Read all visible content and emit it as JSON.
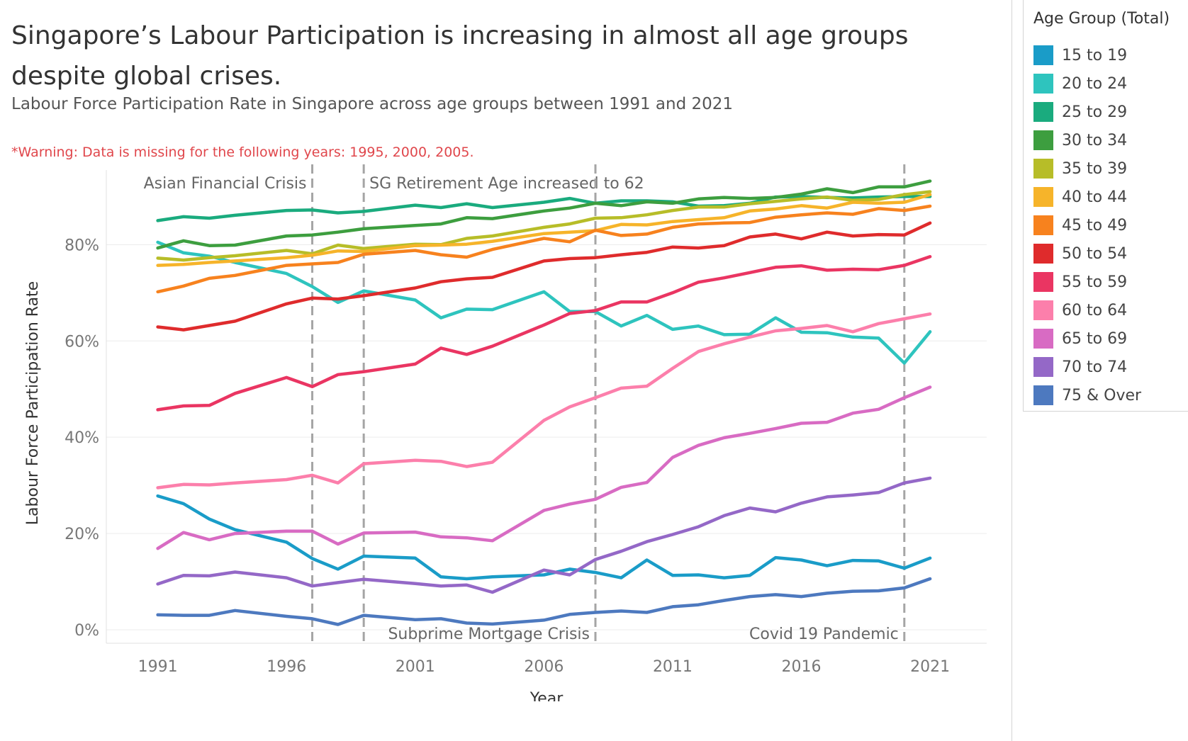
{
  "title": "Singapore’s Labour Participation is increasing in almost all age groups despite global crises.",
  "subtitle": "Labour Force Participation Rate in Singapore across age groups between 1991 and 2021",
  "warning": "*Warning: Data is missing for the following years: 1995, 2000, 2005.",
  "chart_data": {
    "type": "line",
    "xlabel": "Year",
    "ylabel": "Labour Force Participation Rate",
    "xlim": [
      1989,
      2023.2
    ],
    "ylim": [
      -2.5,
      95.5
    ],
    "x_ticks": [
      1991,
      1996,
      2001,
      2006,
      2011,
      2016,
      2021
    ],
    "y_ticks": [
      0,
      20,
      40,
      60,
      80
    ],
    "y_tick_labels": [
      "0%",
      "20%",
      "40%",
      "60%",
      "80%"
    ],
    "grid": "horizontal",
    "legend_title": "Age Group (Total)",
    "legend_position": "right",
    "annotations": [
      {
        "year": 1997,
        "label": "Asian Financial Crisis",
        "label_side": "left",
        "label_pos": "top"
      },
      {
        "year": 1999,
        "label": "SG Retirement Age increased to 62",
        "label_side": "right",
        "label_pos": "top"
      },
      {
        "year": 2008,
        "label": "Subprime Mortgage Crisis",
        "label_side": "left",
        "label_pos": "bottom"
      },
      {
        "year": 2020,
        "label": "Covid 19 Pandemic",
        "label_side": "left",
        "label_pos": "bottom"
      }
    ],
    "x": [
      1991,
      1992,
      1993,
      1994,
      1996,
      1997,
      1998,
      1999,
      2001,
      2002,
      2003,
      2004,
      2006,
      2007,
      2008,
      2009,
      2010,
      2011,
      2012,
      2013,
      2014,
      2015,
      2016,
      2017,
      2018,
      2019,
      2020,
      2021
    ],
    "series": [
      {
        "name": "15 to 19",
        "color": "#1a9cc8",
        "values": [
          27.8,
          26.2,
          23.0,
          20.8,
          18.2,
          14.8,
          12.6,
          15.3,
          14.9,
          11.0,
          10.6,
          11.0,
          11.4,
          12.6,
          11.9,
          10.8,
          14.5,
          11.3,
          11.4,
          10.8,
          11.3,
          15.0,
          14.5,
          13.3,
          14.4,
          14.3,
          12.8,
          14.9
        ]
      },
      {
        "name": "20 to 24",
        "color": "#2ec4be",
        "values": [
          80.5,
          78.3,
          77.6,
          76.3,
          74.0,
          71.3,
          68.0,
          70.4,
          68.5,
          64.8,
          66.6,
          66.5,
          70.2,
          66.1,
          66.1,
          63.1,
          65.3,
          62.4,
          63.1,
          61.3,
          61.4,
          64.8,
          61.8,
          61.7,
          60.8,
          60.6,
          55.4,
          61.9
        ]
      },
      {
        "name": "25 to 29",
        "color": "#1aab7e",
        "values": [
          85.0,
          85.8,
          85.5,
          86.1,
          87.1,
          87.2,
          86.6,
          86.9,
          88.2,
          87.7,
          88.5,
          87.7,
          88.8,
          89.6,
          88.6,
          89.1,
          89.1,
          88.9,
          88.0,
          88.1,
          88.6,
          89.9,
          90.0,
          89.8,
          89.7,
          89.9,
          90.0,
          90.0
        ]
      },
      {
        "name": "30 to 34",
        "color": "#3d9e3f",
        "values": [
          79.3,
          80.8,
          79.8,
          79.9,
          81.8,
          82.0,
          82.6,
          83.3,
          84.0,
          84.3,
          85.6,
          85.4,
          87.0,
          87.6,
          88.6,
          88.1,
          88.9,
          88.6,
          89.5,
          89.8,
          89.6,
          89.8,
          90.5,
          91.6,
          90.8,
          92.0,
          92.0,
          93.2
        ]
      },
      {
        "name": "35 to 39",
        "color": "#b7bd28",
        "values": [
          77.2,
          76.8,
          77.3,
          77.7,
          78.8,
          78.1,
          79.9,
          79.2,
          80.1,
          80.0,
          81.3,
          81.8,
          83.6,
          84.3,
          85.5,
          85.6,
          86.2,
          87.1,
          87.8,
          87.8,
          88.5,
          89.0,
          89.5,
          89.9,
          89.2,
          89.4,
          90.4,
          91.0
        ]
      },
      {
        "name": "40 to 44",
        "color": "#f6b42a",
        "values": [
          75.7,
          75.9,
          76.3,
          76.6,
          77.3,
          77.8,
          78.7,
          78.6,
          79.8,
          79.9,
          80.1,
          80.7,
          82.3,
          82.6,
          82.9,
          84.2,
          84.1,
          84.8,
          85.2,
          85.6,
          87.0,
          87.4,
          88.1,
          87.6,
          88.8,
          88.6,
          88.8,
          90.4
        ]
      },
      {
        "name": "45 to 49",
        "color": "#f7821e",
        "values": [
          70.2,
          71.4,
          73.0,
          73.6,
          75.7,
          76.0,
          76.3,
          78.0,
          78.8,
          77.9,
          77.4,
          79.0,
          81.3,
          80.6,
          83.0,
          81.9,
          82.2,
          83.6,
          84.3,
          84.5,
          84.6,
          85.7,
          86.2,
          86.6,
          86.3,
          87.5,
          87.1,
          88.0
        ]
      },
      {
        "name": "50 to 54",
        "color": "#df2b2c",
        "values": [
          62.9,
          62.3,
          63.2,
          64.1,
          67.7,
          68.9,
          68.7,
          69.4,
          71.0,
          72.3,
          72.9,
          73.2,
          76.6,
          77.1,
          77.3,
          77.9,
          78.4,
          79.5,
          79.3,
          79.8,
          81.6,
          82.2,
          81.2,
          82.6,
          81.8,
          82.1,
          82.0,
          84.5
        ]
      },
      {
        "name": "55 to 59",
        "color": "#ea3562",
        "values": [
          45.7,
          46.5,
          46.6,
          49.1,
          52.4,
          50.5,
          53.0,
          53.6,
          55.2,
          58.5,
          57.2,
          58.9,
          63.3,
          65.7,
          66.3,
          68.1,
          68.1,
          70.0,
          72.2,
          73.1,
          74.2,
          75.3,
          75.6,
          74.7,
          74.9,
          74.8,
          75.7,
          77.5
        ]
      },
      {
        "name": "60 to 64",
        "color": "#fc7fab",
        "values": [
          29.5,
          30.2,
          30.1,
          30.5,
          31.2,
          32.1,
          30.5,
          34.5,
          35.2,
          35.0,
          33.9,
          34.8,
          43.5,
          46.3,
          48.2,
          50.2,
          50.6,
          54.3,
          57.8,
          59.4,
          60.8,
          62.1,
          62.6,
          63.2,
          61.9,
          63.6,
          64.6,
          65.6
        ]
      },
      {
        "name": "65 to 69",
        "color": "#d86bc3",
        "values": [
          16.9,
          20.2,
          18.7,
          20.0,
          20.5,
          20.5,
          17.8,
          20.1,
          20.3,
          19.3,
          19.1,
          18.5,
          24.8,
          26.1,
          27.1,
          29.6,
          30.6,
          35.8,
          38.3,
          39.9,
          40.8,
          41.8,
          42.9,
          43.1,
          45.0,
          45.8,
          48.2,
          50.4
        ]
      },
      {
        "name": "70 to 74",
        "color": "#9468c7",
        "values": [
          9.5,
          11.3,
          11.2,
          12.0,
          10.8,
          9.1,
          9.8,
          10.5,
          9.6,
          9.1,
          9.3,
          7.8,
          12.4,
          11.4,
          14.6,
          16.3,
          18.3,
          19.8,
          21.4,
          23.7,
          25.3,
          24.5,
          26.3,
          27.6,
          28.0,
          28.5,
          30.5,
          31.5
        ]
      },
      {
        "name": "75 & Over",
        "color": "#4d79bf",
        "values": [
          3.1,
          3.0,
          3.0,
          4.0,
          2.8,
          2.3,
          1.1,
          3.0,
          2.1,
          2.3,
          1.4,
          1.2,
          2.0,
          3.2,
          3.6,
          3.9,
          3.6,
          4.8,
          5.2,
          6.1,
          6.9,
          7.3,
          6.9,
          7.6,
          8.0,
          8.1,
          8.7,
          10.6
        ]
      }
    ]
  }
}
